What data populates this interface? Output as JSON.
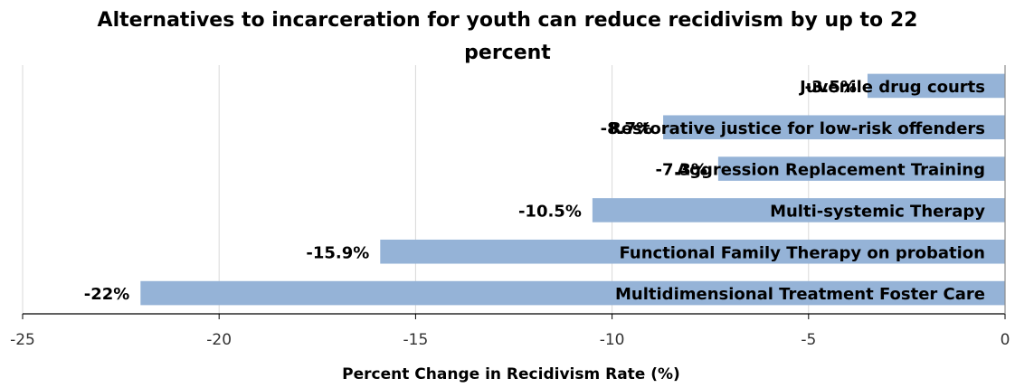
{
  "chart_data": {
    "type": "bar",
    "orientation": "horizontal",
    "title_line1": "Alternatives to incarceration for youth can reduce recidivism by up to 22",
    "title_line2": "percent",
    "xlabel": "Percent Change in Recidivism Rate (%)",
    "ylabel": "",
    "xlim": [
      -25,
      0
    ],
    "x_ticks": [
      "-25",
      "-20",
      "-15",
      "-10",
      "-5",
      "0"
    ],
    "grid": "vertical",
    "legend": "none",
    "bar_color": "#95b3d7",
    "categories": [
      "Juvenile drug courts",
      "Restorative justice for low-risk offenders",
      "Aggression Replacement Training",
      "Multi-systemic Therapy",
      "Functional Family Therapy on probation",
      "Multidimensional Treatment Foster Care"
    ],
    "values": [
      -3.5,
      -8.7,
      -7.3,
      -10.5,
      -15.9,
      -22
    ],
    "value_labels": [
      "-3.5%",
      "-8.7%",
      "-7.3%",
      "-10.5%",
      "-15.9%",
      "-22%"
    ]
  }
}
